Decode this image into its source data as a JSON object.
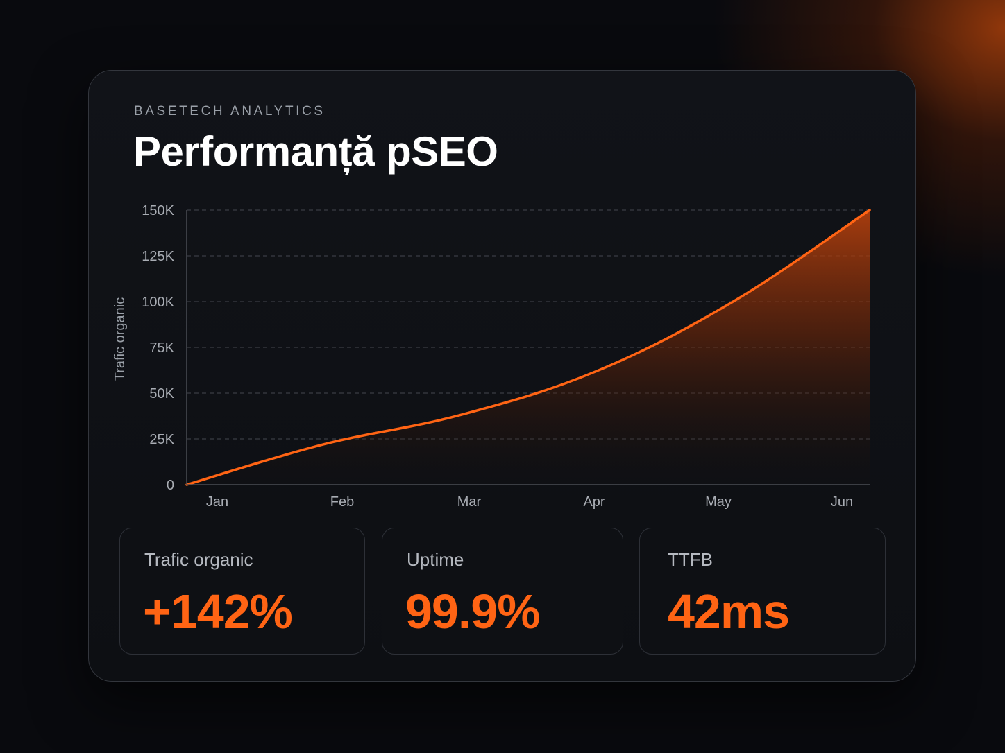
{
  "header": {
    "eyebrow": "BASETECH ANALYTICS",
    "title": "Performanță pSEO"
  },
  "colors": {
    "accent": "#ff6414",
    "background": "#090a0e",
    "card": "#111318",
    "grid": "#3a3d44",
    "axis_text": "#a9adb4"
  },
  "chart_data": {
    "type": "area",
    "title": "Performanță pSEO",
    "xlabel": "",
    "ylabel": "Trafic organic",
    "x": [
      "Jan",
      "Feb",
      "Mar",
      "Apr",
      "May",
      "Jun"
    ],
    "series": [
      {
        "values": [
          0,
          22000,
          38000,
          62000,
          100000,
          150000
        ]
      }
    ],
    "ylim": [
      0,
      150000
    ],
    "yticks": [
      0,
      25000,
      50000,
      75000,
      100000,
      125000,
      150000
    ],
    "ytick_labels": [
      "0",
      "25K",
      "50K",
      "75K",
      "100K",
      "125K",
      "150K"
    ],
    "grid": true,
    "grid_style": "dashed-horizontal"
  },
  "stats": [
    {
      "label": "Trafic organic",
      "value": "+142%"
    },
    {
      "label": "Uptime",
      "value": "99.9%"
    },
    {
      "label": "TTFB",
      "value": "42ms"
    }
  ]
}
